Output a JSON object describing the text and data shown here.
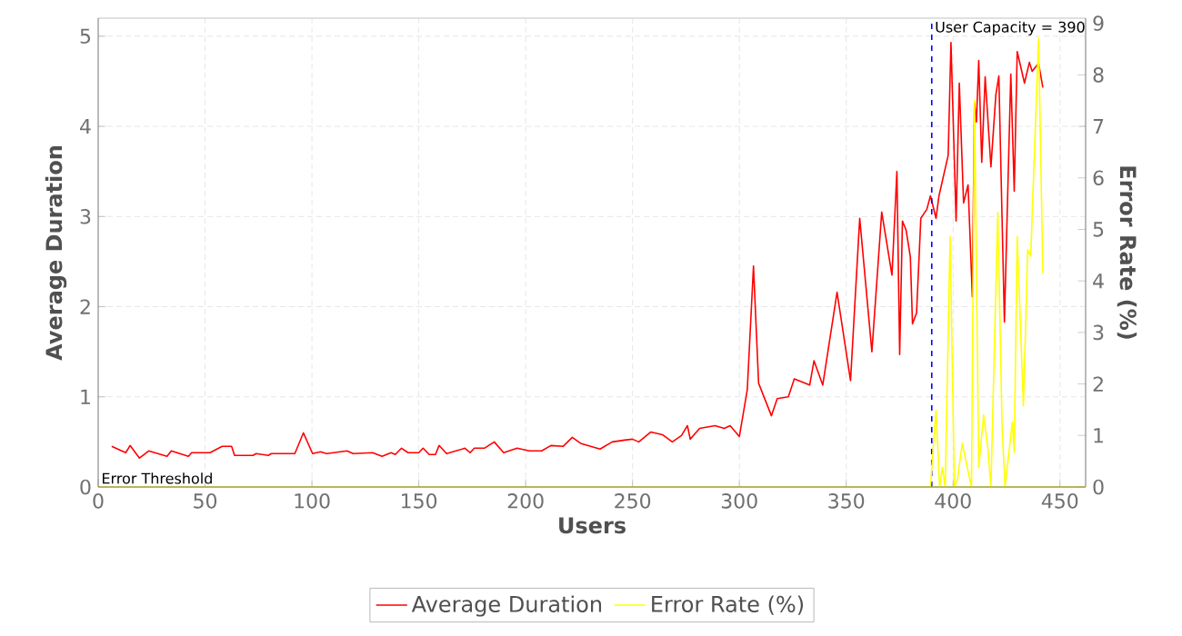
{
  "chart_data": {
    "type": "line",
    "xlabel": "Users",
    "ylabel": "Average Duration",
    "y2label": "Error Rate (%)",
    "xlim": [
      0,
      462
    ],
    "ylim": [
      0,
      5.2
    ],
    "y2lim": [
      0,
      9.1
    ],
    "xticks": [
      0,
      50,
      100,
      150,
      200,
      250,
      300,
      350,
      400,
      450
    ],
    "yticks": [
      0,
      1,
      2,
      3,
      4,
      5
    ],
    "y2ticks": [
      0,
      1,
      2,
      3,
      4,
      5,
      6,
      7,
      8,
      9
    ],
    "grid": true,
    "legend": "bottom",
    "marker": "none",
    "line_style": "solid",
    "series": [
      {
        "name": "Average Duration",
        "color": "#ff0000",
        "axis": "y",
        "x": [
          6.3,
          12.9,
          14.9,
          19.3,
          23.6,
          32.2,
          34.2,
          42.2,
          43.7,
          52.3,
          58,
          62.4,
          63.8,
          72.4,
          73.9,
          79.6,
          81,
          92,
          96,
          100.3,
          104,
          106.9,
          116.4,
          119.3,
          128.4,
          132.8,
          137,
          139,
          141.9,
          145,
          150,
          152,
          154.9,
          157.8,
          159.5,
          163,
          171.6,
          174,
          176,
          180.7,
          185.3,
          189.7,
          196,
          201.7,
          207.5,
          211.8,
          217.5,
          221.8,
          226,
          234.8,
          240.5,
          246.3,
          250,
          252.9,
          258.6,
          264,
          268.6,
          272.9,
          275.7,
          277,
          281.4,
          288.6,
          292.9,
          295.7,
          300,
          303.7,
          306.6,
          309,
          315,
          317.7,
          322.9,
          325.7,
          332.9,
          334.9,
          339,
          345.7,
          352,
          356.3,
          362,
          366.6,
          371.4,
          373.7,
          375,
          376.3,
          378,
          380,
          381,
          382.9,
          384.9,
          387.7,
          389.4,
          392,
          393.4,
          397.7,
          399,
          401.4,
          402.9,
          404.9,
          407,
          409,
          410,
          410.9,
          412,
          413.4,
          415,
          417.7,
          420,
          421.4,
          424,
          427,
          428.6,
          430,
          433.4,
          435.7,
          437,
          440,
          442
        ],
        "values": [
          0.45,
          0.38,
          0.46,
          0.32,
          0.4,
          0.34,
          0.4,
          0.34,
          0.38,
          0.38,
          0.45,
          0.45,
          0.35,
          0.35,
          0.37,
          0.35,
          0.37,
          0.37,
          0.6,
          0.37,
          0.39,
          0.37,
          0.4,
          0.37,
          0.38,
          0.34,
          0.38,
          0.36,
          0.43,
          0.38,
          0.38,
          0.43,
          0.36,
          0.36,
          0.46,
          0.37,
          0.43,
          0.38,
          0.43,
          0.43,
          0.5,
          0.38,
          0.43,
          0.4,
          0.4,
          0.46,
          0.45,
          0.55,
          0.48,
          0.42,
          0.5,
          0.52,
          0.53,
          0.5,
          0.61,
          0.58,
          0.5,
          0.57,
          0.68,
          0.53,
          0.65,
          0.68,
          0.65,
          0.68,
          0.56,
          1.08,
          2.45,
          1.15,
          0.79,
          0.98,
          1.0,
          1.2,
          1.13,
          1.4,
          1.13,
          2.16,
          1.18,
          2.98,
          1.5,
          3.05,
          2.35,
          3.5,
          1.47,
          2.95,
          2.85,
          2.55,
          1.81,
          1.93,
          2.98,
          3.08,
          3.23,
          2.98,
          3.23,
          3.68,
          4.93,
          2.95,
          4.48,
          3.15,
          3.35,
          2.11,
          4.26,
          4.05,
          4.73,
          3.6,
          4.55,
          3.55,
          4.35,
          4.56,
          1.83,
          4.58,
          3.28,
          4.83,
          4.48,
          4.71,
          4.61,
          4.7,
          4.43
        ]
      },
      {
        "name": "Error Rate (%)",
        "color": "#ffff00",
        "axis": "y2",
        "x": [
          389.4,
          392,
          393.7,
          395,
          396.3,
          398.6,
          400.6,
          402,
          404.3,
          406.6,
          408.6,
          410,
          412,
          414.3,
          416.3,
          417.7,
          420.9,
          422.9,
          424.3,
          427.7,
          428.6,
          430,
          432.9,
          434.9,
          436.3,
          440,
          442
        ],
        "values": [
          0,
          1.49,
          0,
          0.38,
          0,
          4.86,
          0,
          0.14,
          0.85,
          0.38,
          0,
          7.5,
          0.38,
          1.4,
          0.73,
          0,
          5.33,
          1.2,
          0,
          1.26,
          0.67,
          4.86,
          1.57,
          4.6,
          4.48,
          8.71,
          4.15
        ]
      }
    ],
    "ref_lines": [
      {
        "axis": "x",
        "value": 390,
        "label": "User Capacity = 390",
        "color": "#0000ff",
        "line_style": "dashed"
      },
      {
        "axis": "y2",
        "value": 0,
        "label": "Error Threshold",
        "color": "#b5b53c",
        "line_style": "solid"
      }
    ]
  }
}
